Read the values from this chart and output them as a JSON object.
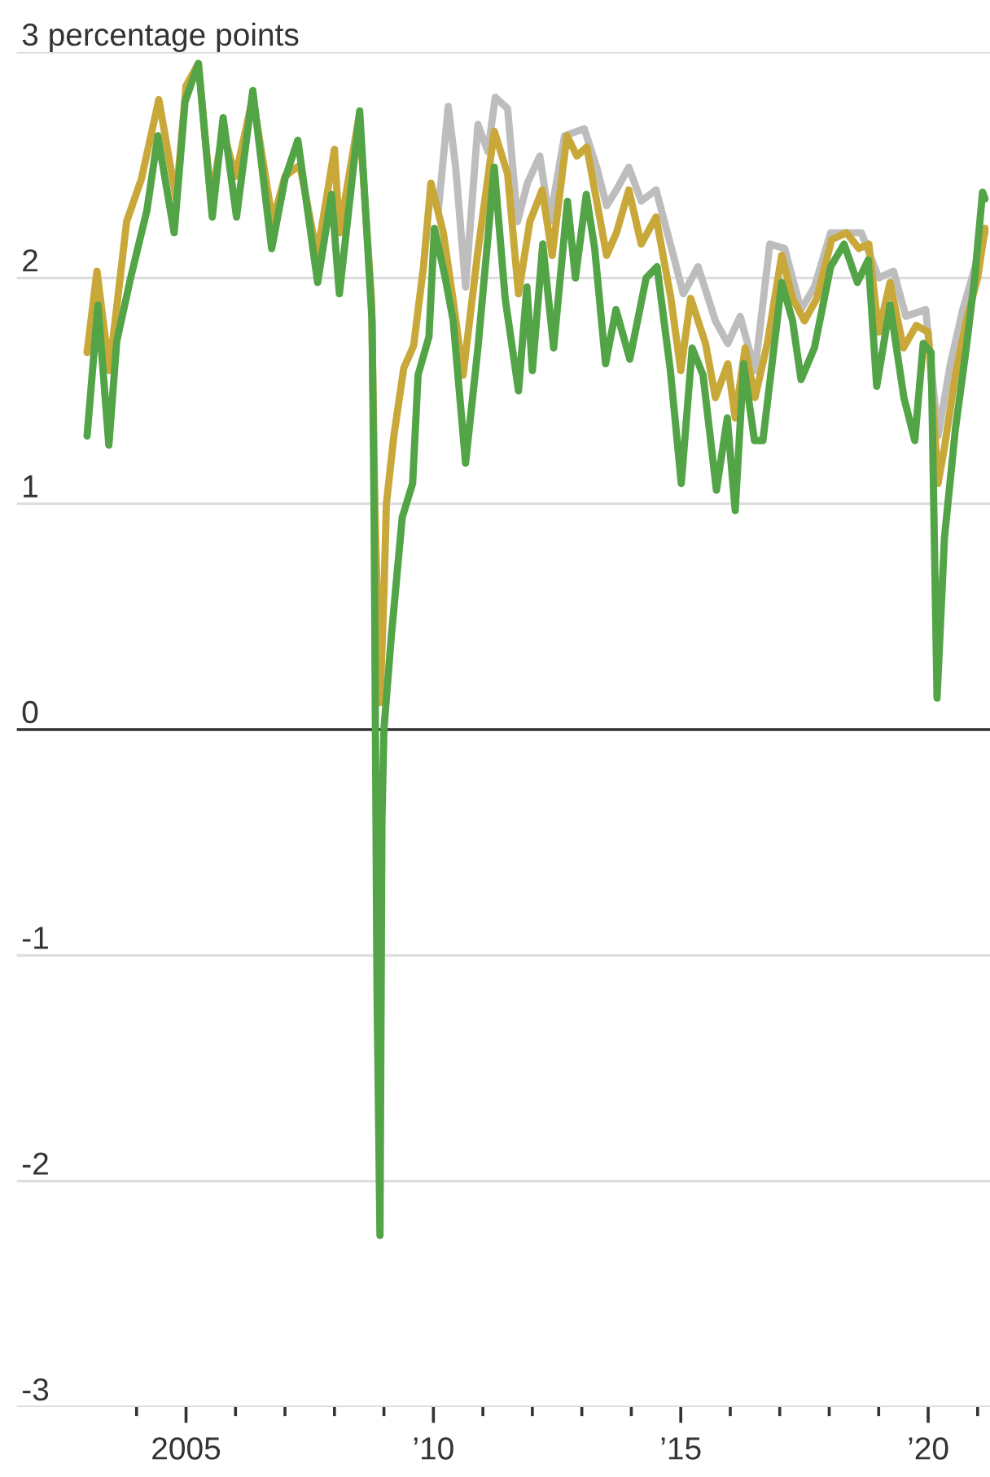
{
  "chart_data": {
    "type": "line",
    "xlim": [
      2001.58,
      2021.25
    ],
    "ylim": [
      -3,
      3
    ],
    "xticks": [
      {
        "value": 2004,
        "label": null
      },
      {
        "value": 2005,
        "label": "2005"
      },
      {
        "value": 2006,
        "label": null
      },
      {
        "value": 2007,
        "label": null
      },
      {
        "value": 2008,
        "label": null
      },
      {
        "value": 2009,
        "label": null
      },
      {
        "value": 2010,
        "label": "’10"
      },
      {
        "value": 2011,
        "label": null
      },
      {
        "value": 2012,
        "label": null
      },
      {
        "value": 2013,
        "label": null
      },
      {
        "value": 2014,
        "label": null
      },
      {
        "value": 2015,
        "label": "’15"
      },
      {
        "value": 2016,
        "label": null
      },
      {
        "value": 2017,
        "label": null
      },
      {
        "value": 2018,
        "label": null
      },
      {
        "value": 2019,
        "label": null
      },
      {
        "value": 2020,
        "label": "’20"
      },
      {
        "value": 2021,
        "label": null
      }
    ],
    "yticks": [
      -3,
      -2,
      -1,
      0,
      1,
      2,
      {
        "value": 3,
        "label": "3 percentage points"
      }
    ],
    "grid": "y",
    "line_style": "solid",
    "ref_lines": [
      {
        "axis": "y",
        "value": 0,
        "label": null,
        "color": "#333333"
      }
    ],
    "series": [
      {
        "color": "#bdbdbd",
        "x": [
          2010.1,
          2010.3,
          2010.45,
          2010.65,
          2010.9,
          2011.1,
          2011.25,
          2011.5,
          2011.7,
          2011.9,
          2012.15,
          2012.35,
          2012.65,
          2013.05,
          2013.3,
          2013.5,
          2013.7,
          2013.95,
          2014.2,
          2014.5,
          2014.85,
          2015.05,
          2015.35,
          2015.7,
          2015.95,
          2016.2,
          2016.5,
          2016.8,
          2017.1,
          2017.43,
          2017.7,
          2018.03,
          2018.35,
          2018.65,
          2019.0,
          2019.3,
          2019.55,
          2019.95,
          2020.2,
          2020.45,
          2020.7,
          2020.95,
          2021.15
        ],
        "values": [
          2.3,
          2.76,
          2.49,
          1.96,
          2.68,
          2.56,
          2.8,
          2.75,
          2.25,
          2.42,
          2.54,
          2.25,
          2.63,
          2.66,
          2.49,
          2.32,
          2.39,
          2.49,
          2.34,
          2.39,
          2.1,
          1.93,
          2.05,
          1.81,
          1.71,
          1.83,
          1.59,
          2.15,
          2.13,
          1.86,
          1.96,
          2.2,
          2.2,
          2.2,
          2.0,
          2.03,
          1.83,
          1.86,
          1.3,
          1.62,
          1.86,
          2.05,
          2.2
        ]
      },
      {
        "color": "#c9a83a",
        "x": [
          2003.0,
          2003.2,
          2003.45,
          2003.8,
          2004.1,
          2004.45,
          2004.8,
          2005.0,
          2005.25,
          2005.5,
          2005.75,
          2006.0,
          2006.35,
          2006.75,
          2007.0,
          2007.3,
          2007.65,
          2008.0,
          2008.1,
          2008.5,
          2008.75,
          2008.82,
          2008.92,
          2009.0,
          2009.05,
          2009.2,
          2009.4,
          2009.6,
          2009.8,
          2009.95,
          2010.2,
          2010.4,
          2010.6,
          2010.9,
          2011.23,
          2011.5,
          2011.72,
          2011.95,
          2012.2,
          2012.4,
          2012.7,
          2012.9,
          2013.1,
          2013.3,
          2013.5,
          2013.7,
          2013.95,
          2014.2,
          2014.5,
          2014.8,
          2015.0,
          2015.2,
          2015.5,
          2015.7,
          2015.95,
          2016.1,
          2016.3,
          2016.5,
          2016.75,
          2017.04,
          2017.26,
          2017.5,
          2017.75,
          2018.05,
          2018.35,
          2018.6,
          2018.8,
          2019.0,
          2019.23,
          2019.5,
          2019.76,
          2020.0,
          2020.2,
          2020.33,
          2020.55,
          2020.77,
          2021.0,
          2021.15
        ],
        "values": [
          1.67,
          2.03,
          1.59,
          2.25,
          2.44,
          2.79,
          2.35,
          2.85,
          2.95,
          2.35,
          2.65,
          2.45,
          2.8,
          2.25,
          2.45,
          2.5,
          2.1,
          2.57,
          2.2,
          2.72,
          1.9,
          0.96,
          0.12,
          0.6,
          1.0,
          1.3,
          1.6,
          1.7,
          2.05,
          2.42,
          2.2,
          1.9,
          1.57,
          2.12,
          2.65,
          2.46,
          1.93,
          2.25,
          2.39,
          2.1,
          2.63,
          2.54,
          2.58,
          2.34,
          2.1,
          2.2,
          2.39,
          2.15,
          2.27,
          1.91,
          1.59,
          1.91,
          1.71,
          1.47,
          1.62,
          1.38,
          1.69,
          1.47,
          1.71,
          2.1,
          1.91,
          1.81,
          1.91,
          2.17,
          2.2,
          2.13,
          2.15,
          1.76,
          1.98,
          1.69,
          1.79,
          1.76,
          1.09,
          1.25,
          1.57,
          1.81,
          2.0,
          2.22
        ]
      },
      {
        "color": "#52a447",
        "x": [
          2003.0,
          2003.22,
          2003.44,
          2003.6,
          2003.88,
          2004.21,
          2004.43,
          2004.76,
          2004.98,
          2005.25,
          2005.53,
          2005.75,
          2006.02,
          2006.35,
          2006.73,
          2007.0,
          2007.26,
          2007.66,
          2007.94,
          2008.1,
          2008.51,
          2008.76,
          2008.8,
          2008.86,
          2008.92,
          2008.96,
          2009.0,
          2009.14,
          2009.37,
          2009.58,
          2009.69,
          2009.91,
          2010.02,
          2010.24,
          2010.4,
          2010.65,
          2010.9,
          2011.23,
          2011.45,
          2011.72,
          2011.89,
          2012.0,
          2012.21,
          2012.43,
          2012.71,
          2012.87,
          2013.09,
          2013.26,
          2013.48,
          2013.69,
          2013.97,
          2014.3,
          2014.52,
          2014.79,
          2015.01,
          2015.23,
          2015.45,
          2015.72,
          2015.94,
          2016.1,
          2016.27,
          2016.49,
          2016.66,
          2017.04,
          2017.26,
          2017.43,
          2017.7,
          2018.03,
          2018.3,
          2018.57,
          2018.79,
          2018.96,
          2019.23,
          2019.51,
          2019.73,
          2019.9,
          2020.06,
          2020.18,
          2020.33,
          2020.55,
          2020.77,
          2020.94,
          2021.1,
          2021.15
        ],
        "values": [
          1.3,
          1.88,
          1.26,
          1.72,
          2.0,
          2.3,
          2.63,
          2.2,
          2.78,
          2.95,
          2.27,
          2.71,
          2.27,
          2.83,
          2.13,
          2.44,
          2.61,
          1.98,
          2.37,
          1.93,
          2.74,
          1.81,
          0.99,
          -1.14,
          -2.24,
          -0.4,
          0.0,
          0.39,
          0.94,
          1.09,
          1.57,
          1.74,
          2.22,
          2.0,
          1.81,
          1.18,
          1.69,
          2.49,
          1.91,
          1.5,
          1.96,
          1.59,
          2.15,
          1.69,
          2.34,
          2.0,
          2.37,
          2.13,
          1.62,
          1.86,
          1.64,
          2.0,
          2.05,
          1.59,
          1.09,
          1.69,
          1.57,
          1.06,
          1.38,
          0.97,
          1.62,
          1.28,
          1.28,
          1.98,
          1.81,
          1.55,
          1.69,
          2.05,
          2.15,
          1.98,
          2.08,
          1.52,
          1.88,
          1.47,
          1.28,
          1.71,
          1.67,
          0.14,
          0.85,
          1.33,
          1.69,
          2.0,
          2.38,
          2.35
        ]
      }
    ]
  }
}
